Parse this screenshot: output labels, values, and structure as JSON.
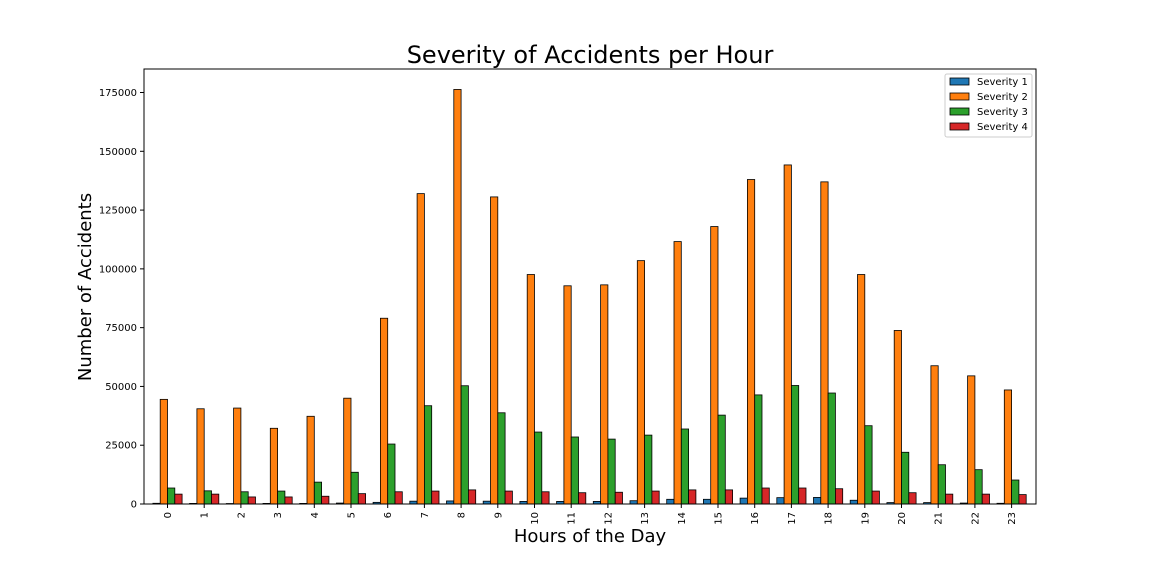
{
  "chart_data": {
    "type": "bar",
    "title": "Severity of Accidents per Hour",
    "xlabel": "Hours of the Day",
    "ylabel": "Number of Accidents",
    "ylim": [
      0,
      185000
    ],
    "yticks": [
      0,
      25000,
      50000,
      75000,
      100000,
      125000,
      150000,
      175000
    ],
    "ytick_labels": [
      "0",
      "25000",
      "50000",
      "75000",
      "100000",
      "125000",
      "150000",
      "175000"
    ],
    "categories": [
      "0",
      "1",
      "2",
      "3",
      "4",
      "5",
      "6",
      "7",
      "8",
      "9",
      "10",
      "11",
      "12",
      "13",
      "14",
      "15",
      "16",
      "17",
      "18",
      "19",
      "20",
      "21",
      "22",
      "23"
    ],
    "legend_position": "top-right",
    "grid": false,
    "series": [
      {
        "name": "Severity 1",
        "color": "#1f77b4",
        "values": [
          300,
          250,
          200,
          250,
          250,
          400,
          700,
          1200,
          1300,
          1200,
          1100,
          1100,
          1100,
          1400,
          2000,
          2000,
          2500,
          2700,
          2800,
          1600,
          600,
          600,
          400,
          300
        ]
      },
      {
        "name": "Severity 2",
        "color": "#ff7f0e",
        "values": [
          44500,
          40500,
          40800,
          32200,
          37300,
          45000,
          79000,
          132000,
          176300,
          130600,
          97600,
          92800,
          93200,
          103500,
          111600,
          118000,
          138000,
          144200,
          137000,
          97600,
          73800,
          58800,
          54500,
          48500
        ]
      },
      {
        "name": "Severity 3",
        "color": "#2ca02c",
        "values": [
          6800,
          5600,
          5200,
          5500,
          9300,
          13500,
          25500,
          41800,
          50300,
          38800,
          30600,
          28500,
          27600,
          29300,
          31900,
          37800,
          46400,
          50400,
          47200,
          33300,
          22000,
          16700,
          14600,
          10200
        ]
      },
      {
        "name": "Severity 4",
        "color": "#d62728",
        "values": [
          4200,
          4200,
          3000,
          3000,
          3300,
          4400,
          5200,
          5500,
          6000,
          5500,
          5200,
          4800,
          5000,
          5500,
          6000,
          6000,
          6800,
          6800,
          6500,
          5500,
          4800,
          4200,
          4200,
          4000
        ]
      }
    ]
  }
}
